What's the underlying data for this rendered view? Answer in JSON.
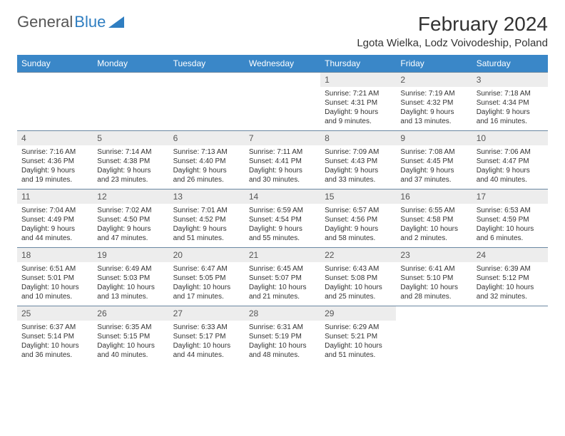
{
  "logo": {
    "text1": "General",
    "text2": "Blue"
  },
  "title": "February 2024",
  "location": "Lgota Wielka, Lodz Voivodeship, Poland",
  "colors": {
    "header_bg": "#3a87c8",
    "header_text": "#ffffff",
    "daynum_bg": "#ededed",
    "border": "#6a87a2",
    "logo_blue": "#2f7ec1"
  },
  "dow": [
    "Sunday",
    "Monday",
    "Tuesday",
    "Wednesday",
    "Thursday",
    "Friday",
    "Saturday"
  ],
  "weeks": [
    [
      null,
      null,
      null,
      null,
      {
        "n": "1",
        "sr": "7:21 AM",
        "ss": "4:31 PM",
        "dl": "9 hours and 9 minutes."
      },
      {
        "n": "2",
        "sr": "7:19 AM",
        "ss": "4:32 PM",
        "dl": "9 hours and 13 minutes."
      },
      {
        "n": "3",
        "sr": "7:18 AM",
        "ss": "4:34 PM",
        "dl": "9 hours and 16 minutes."
      }
    ],
    [
      {
        "n": "4",
        "sr": "7:16 AM",
        "ss": "4:36 PM",
        "dl": "9 hours and 19 minutes."
      },
      {
        "n": "5",
        "sr": "7:14 AM",
        "ss": "4:38 PM",
        "dl": "9 hours and 23 minutes."
      },
      {
        "n": "6",
        "sr": "7:13 AM",
        "ss": "4:40 PM",
        "dl": "9 hours and 26 minutes."
      },
      {
        "n": "7",
        "sr": "7:11 AM",
        "ss": "4:41 PM",
        "dl": "9 hours and 30 minutes."
      },
      {
        "n": "8",
        "sr": "7:09 AM",
        "ss": "4:43 PM",
        "dl": "9 hours and 33 minutes."
      },
      {
        "n": "9",
        "sr": "7:08 AM",
        "ss": "4:45 PM",
        "dl": "9 hours and 37 minutes."
      },
      {
        "n": "10",
        "sr": "7:06 AM",
        "ss": "4:47 PM",
        "dl": "9 hours and 40 minutes."
      }
    ],
    [
      {
        "n": "11",
        "sr": "7:04 AM",
        "ss": "4:49 PM",
        "dl": "9 hours and 44 minutes."
      },
      {
        "n": "12",
        "sr": "7:02 AM",
        "ss": "4:50 PM",
        "dl": "9 hours and 47 minutes."
      },
      {
        "n": "13",
        "sr": "7:01 AM",
        "ss": "4:52 PM",
        "dl": "9 hours and 51 minutes."
      },
      {
        "n": "14",
        "sr": "6:59 AM",
        "ss": "4:54 PM",
        "dl": "9 hours and 55 minutes."
      },
      {
        "n": "15",
        "sr": "6:57 AM",
        "ss": "4:56 PM",
        "dl": "9 hours and 58 minutes."
      },
      {
        "n": "16",
        "sr": "6:55 AM",
        "ss": "4:58 PM",
        "dl": "10 hours and 2 minutes."
      },
      {
        "n": "17",
        "sr": "6:53 AM",
        "ss": "4:59 PM",
        "dl": "10 hours and 6 minutes."
      }
    ],
    [
      {
        "n": "18",
        "sr": "6:51 AM",
        "ss": "5:01 PM",
        "dl": "10 hours and 10 minutes."
      },
      {
        "n": "19",
        "sr": "6:49 AM",
        "ss": "5:03 PM",
        "dl": "10 hours and 13 minutes."
      },
      {
        "n": "20",
        "sr": "6:47 AM",
        "ss": "5:05 PM",
        "dl": "10 hours and 17 minutes."
      },
      {
        "n": "21",
        "sr": "6:45 AM",
        "ss": "5:07 PM",
        "dl": "10 hours and 21 minutes."
      },
      {
        "n": "22",
        "sr": "6:43 AM",
        "ss": "5:08 PM",
        "dl": "10 hours and 25 minutes."
      },
      {
        "n": "23",
        "sr": "6:41 AM",
        "ss": "5:10 PM",
        "dl": "10 hours and 28 minutes."
      },
      {
        "n": "24",
        "sr": "6:39 AM",
        "ss": "5:12 PM",
        "dl": "10 hours and 32 minutes."
      }
    ],
    [
      {
        "n": "25",
        "sr": "6:37 AM",
        "ss": "5:14 PM",
        "dl": "10 hours and 36 minutes."
      },
      {
        "n": "26",
        "sr": "6:35 AM",
        "ss": "5:15 PM",
        "dl": "10 hours and 40 minutes."
      },
      {
        "n": "27",
        "sr": "6:33 AM",
        "ss": "5:17 PM",
        "dl": "10 hours and 44 minutes."
      },
      {
        "n": "28",
        "sr": "6:31 AM",
        "ss": "5:19 PM",
        "dl": "10 hours and 48 minutes."
      },
      {
        "n": "29",
        "sr": "6:29 AM",
        "ss": "5:21 PM",
        "dl": "10 hours and 51 minutes."
      },
      null,
      null
    ]
  ],
  "labels": {
    "sunrise": "Sunrise:",
    "sunset": "Sunset:",
    "daylight": "Daylight:"
  }
}
